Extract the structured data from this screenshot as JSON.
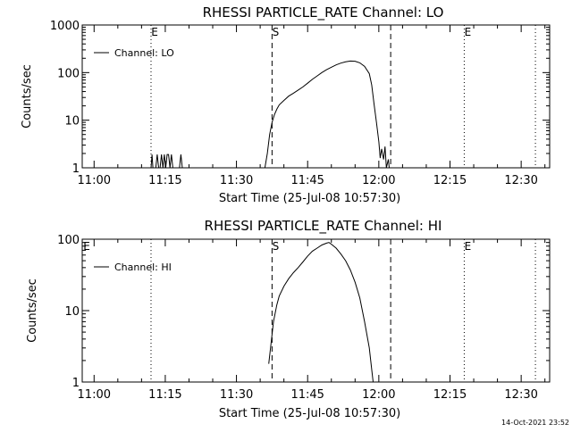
{
  "chart_data": [
    {
      "type": "line",
      "title": "RHESSI PARTICLE_RATE Channel: LO",
      "xlabel": "Start Time (25-Jul-08 10:57:30)",
      "ylabel": "Counts/sec",
      "y_scale": "log",
      "ylim": [
        1,
        1000
      ],
      "xlim_minutes": [
        657.5,
        756
      ],
      "x_ticks": [
        {
          "label": "11:00",
          "minute": 660
        },
        {
          "label": "11:15",
          "minute": 675
        },
        {
          "label": "11:30",
          "minute": 690
        },
        {
          "label": "11:45",
          "minute": 705
        },
        {
          "label": "12:00",
          "minute": 720
        },
        {
          "label": "12:15",
          "minute": 735
        },
        {
          "label": "12:30",
          "minute": 750
        }
      ],
      "y_ticks": [
        {
          "label": "1",
          "value": 1
        },
        {
          "label": "10",
          "value": 10
        },
        {
          "label": "100",
          "value": 100
        },
        {
          "label": "1000",
          "value": 1000
        }
      ],
      "legend": "Channel: LO",
      "vlines": [
        {
          "minute": 672,
          "style": "dotted",
          "marker": "E"
        },
        {
          "minute": 697.5,
          "style": "dashed",
          "marker": "S"
        },
        {
          "minute": 722.5,
          "style": "dashed",
          "marker": ""
        },
        {
          "minute": 738,
          "style": "dotted",
          "marker": "E"
        },
        {
          "minute": 753,
          "style": "dotted",
          "marker": ""
        }
      ],
      "series": [
        {
          "name": "Channel: LO",
          "segments": [
            [
              [
                672.0,
                1.0
              ],
              [
                672.2,
                1.9
              ],
              [
                672.4,
                1.0
              ],
              [
                673.0,
                1.0
              ],
              [
                673.3,
                1.9
              ],
              [
                673.6,
                1.0
              ],
              [
                673.9,
                1.0
              ],
              [
                674.2,
                1.9
              ],
              [
                674.5,
                1.0
              ],
              [
                674.8,
                1.9
              ],
              [
                675.1,
                1.0
              ],
              [
                675.4,
                1.9
              ],
              [
                675.7,
                1.9
              ],
              [
                676.0,
                1.0
              ],
              [
                676.3,
                1.9
              ],
              [
                676.6,
                1.0
              ],
              [
                677.0,
                1.0
              ],
              [
                677.3,
                1.0
              ],
              [
                678.0,
                1.0
              ],
              [
                678.3,
                1.9
              ],
              [
                678.6,
                1.0
              ],
              [
                680.0,
                1.0
              ]
            ],
            [
              [
                696.0,
                1.0
              ],
              [
                696.5,
                2.0
              ],
              [
                697.0,
                5.0
              ],
              [
                697.5,
                9.0
              ],
              [
                698.0,
                13.0
              ],
              [
                698.5,
                17.0
              ],
              [
                699.0,
                21.0
              ],
              [
                700.0,
                26.0
              ],
              [
                701.0,
                32.0
              ],
              [
                702.0,
                37.0
              ],
              [
                703.0,
                43.0
              ],
              [
                704.0,
                50.0
              ],
              [
                705.0,
                60.0
              ],
              [
                706.0,
                72.0
              ],
              [
                707.0,
                85.0
              ],
              [
                708.0,
                100.0
              ],
              [
                709.0,
                115.0
              ],
              [
                710.0,
                130.0
              ],
              [
                711.0,
                145.0
              ],
              [
                712.0,
                158.0
              ],
              [
                713.0,
                168.0
              ],
              [
                714.0,
                175.0
              ],
              [
                715.0,
                173.0
              ],
              [
                716.0,
                160.0
              ],
              [
                717.0,
                135.0
              ],
              [
                718.0,
                95.0
              ],
              [
                718.5,
                55.0
              ],
              [
                719.0,
                22.0
              ],
              [
                719.5,
                9.0
              ],
              [
                720.0,
                3.5
              ],
              [
                720.3,
                1.6
              ],
              [
                720.6,
                2.5
              ],
              [
                721.0,
                1.5
              ],
              [
                721.3,
                2.8
              ],
              [
                721.6,
                1.0
              ],
              [
                722.0,
                1.5
              ],
              [
                722.2,
                1.0
              ]
            ]
          ]
        }
      ]
    },
    {
      "type": "line",
      "title": "RHESSI PARTICLE_RATE Channel: HI",
      "xlabel": "Start Time (25-Jul-08 10:57:30)",
      "ylabel": "Counts/sec",
      "y_scale": "log",
      "ylim": [
        1,
        100
      ],
      "xlim_minutes": [
        657.5,
        756
      ],
      "x_ticks": [
        {
          "label": "11:00",
          "minute": 660
        },
        {
          "label": "11:15",
          "minute": 675
        },
        {
          "label": "11:30",
          "minute": 690
        },
        {
          "label": "11:45",
          "minute": 705
        },
        {
          "label": "12:00",
          "minute": 720
        },
        {
          "label": "12:15",
          "minute": 735
        },
        {
          "label": "12:30",
          "minute": 750
        }
      ],
      "y_ticks": [
        {
          "label": "1",
          "value": 1
        },
        {
          "label": "10",
          "value": 10
        },
        {
          "label": "100",
          "value": 100
        }
      ],
      "legend": "Channel: HI",
      "vlines": [
        {
          "minute": 657.6,
          "style": "none",
          "marker": "E"
        },
        {
          "minute": 672,
          "style": "dotted",
          "marker": ""
        },
        {
          "minute": 697.5,
          "style": "dashed",
          "marker": "S"
        },
        {
          "minute": 722.5,
          "style": "dashed",
          "marker": ""
        },
        {
          "minute": 738,
          "style": "dotted",
          "marker": "E"
        },
        {
          "minute": 753,
          "style": "dotted",
          "marker": ""
        }
      ],
      "series": [
        {
          "name": "Channel: HI",
          "segments": [
            [
              [
                696.8,
                1.8
              ],
              [
                697.3,
                3.5
              ],
              [
                697.8,
                7.0
              ],
              [
                698.5,
                12.0
              ],
              [
                699.0,
                16.0
              ],
              [
                700.0,
                22.0
              ],
              [
                701.0,
                28.0
              ],
              [
                702.0,
                34.0
              ],
              [
                703.0,
                40.0
              ],
              [
                704.0,
                48.0
              ],
              [
                705.0,
                58.0
              ],
              [
                706.0,
                68.0
              ],
              [
                707.0,
                75.0
              ],
              [
                708.0,
                83.0
              ],
              [
                709.0,
                88.0
              ],
              [
                709.5,
                90.0
              ],
              [
                710.0,
                85.0
              ],
              [
                711.0,
                75.0
              ],
              [
                712.0,
                62.0
              ],
              [
                713.0,
                50.0
              ],
              [
                714.0,
                37.0
              ],
              [
                715.0,
                25.0
              ],
              [
                716.0,
                15.0
              ],
              [
                717.0,
                7.0
              ],
              [
                718.0,
                3.0
              ],
              [
                718.5,
                1.5
              ],
              [
                718.8,
                1.0
              ]
            ]
          ]
        }
      ]
    }
  ],
  "timestamp": "14-Oct-2021 23:52"
}
